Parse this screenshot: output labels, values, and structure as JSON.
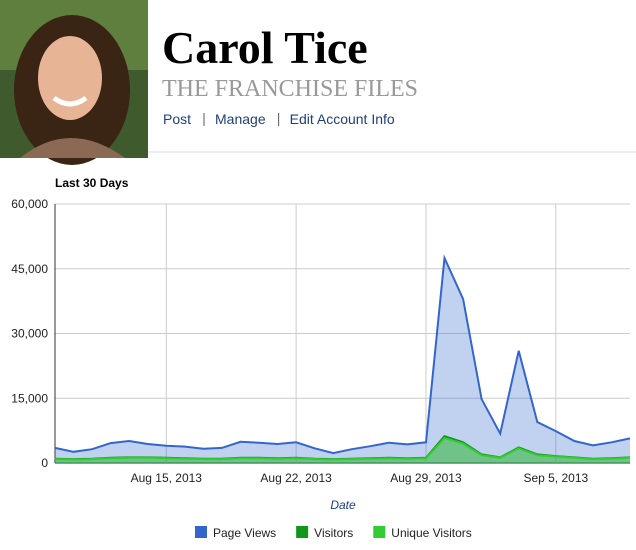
{
  "header": {
    "name": "Carol Tice",
    "subtitle": "THE FRANCHISE FILES",
    "links": [
      "Post",
      "Manage",
      "Edit Account Info"
    ]
  },
  "chart_data": {
    "type": "area",
    "title": "Last 30 Days",
    "x_label": "Date",
    "x": [
      "2013-08-09",
      "2013-08-10",
      "2013-08-11",
      "2013-08-12",
      "2013-08-13",
      "2013-08-14",
      "2013-08-15",
      "2013-08-16",
      "2013-08-17",
      "2013-08-18",
      "2013-08-19",
      "2013-08-20",
      "2013-08-21",
      "2013-08-22",
      "2013-08-23",
      "2013-08-24",
      "2013-08-25",
      "2013-08-26",
      "2013-08-27",
      "2013-08-28",
      "2013-08-29",
      "2013-08-30",
      "2013-08-31",
      "2013-09-01",
      "2013-09-02",
      "2013-09-03",
      "2013-09-04",
      "2013-09-05",
      "2013-09-06",
      "2013-09-07",
      "2013-09-08",
      "2013-09-09"
    ],
    "series": [
      {
        "name": "Page Views",
        "color": "#3366cc",
        "values": [
          3500,
          2600,
          3200,
          4600,
          5100,
          4400,
          4000,
          3800,
          3300,
          3500,
          4900,
          4700,
          4400,
          4800,
          3400,
          2300,
          3200,
          3900,
          4700,
          4300,
          4800,
          47500,
          38000,
          14800,
          6800,
          26000,
          9500,
          7400,
          5100,
          4100,
          4800,
          5700
        ]
      },
      {
        "name": "Visitors",
        "color": "#109618",
        "values": [
          1000,
          900,
          1000,
          1200,
          1300,
          1300,
          1200,
          1100,
          1000,
          1000,
          1200,
          1200,
          1100,
          1200,
          1000,
          900,
          1000,
          1100,
          1200,
          1100,
          1200,
          6200,
          4800,
          2000,
          1300,
          3600,
          2000,
          1600,
          1300,
          1000,
          1100,
          1300
        ]
      },
      {
        "name": "Unique Visitors",
        "color": "#33cc33",
        "values": [
          900,
          800,
          900,
          1100,
          1200,
          1200,
          1100,
          1000,
          900,
          900,
          1100,
          1100,
          1000,
          1100,
          900,
          800,
          900,
          1000,
          1100,
          1000,
          1100,
          5800,
          4500,
          1800,
          1200,
          3400,
          1800,
          1500,
          1200,
          900,
          1000,
          1200
        ]
      }
    ],
    "xlim": [
      "2013-08-09",
      "2013-09-09"
    ],
    "xticks": [
      {
        "value": "2013-08-15",
        "label": "Aug 15, 2013"
      },
      {
        "value": "2013-08-22",
        "label": "Aug 22, 2013"
      },
      {
        "value": "2013-08-29",
        "label": "Aug 29, 2013"
      },
      {
        "value": "2013-09-05",
        "label": "Sep 5, 2013"
      }
    ],
    "ylim": [
      0,
      60000
    ],
    "yticks": [
      0,
      {
        "value": 15000,
        "label": "15,000"
      },
      {
        "value": 30000,
        "label": "30,000"
      },
      {
        "value": 45000,
        "label": "45,000"
      },
      {
        "value": 60000,
        "label": "60,000"
      }
    ],
    "grid": true,
    "legend": "bottom"
  }
}
